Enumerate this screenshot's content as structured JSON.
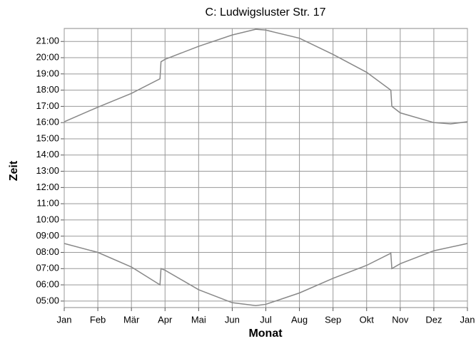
{
  "chart_data": {
    "type": "line",
    "title": "C: Ludwigsluster Str. 17",
    "xlabel": "Monat",
    "ylabel": "Zeit",
    "xlim": [
      0,
      12
    ],
    "xticks": [
      {
        "value": 0,
        "label": "Jan"
      },
      {
        "value": 1,
        "label": "Feb"
      },
      {
        "value": 2,
        "label": "Mär"
      },
      {
        "value": 3,
        "label": "Apr"
      },
      {
        "value": 4,
        "label": "Mai"
      },
      {
        "value": 5,
        "label": "Jun"
      },
      {
        "value": 6,
        "label": "Jul"
      },
      {
        "value": 7,
        "label": "Aug"
      },
      {
        "value": 8,
        "label": "Sep"
      },
      {
        "value": 9,
        "label": "Okt"
      },
      {
        "value": 10,
        "label": "Nov"
      },
      {
        "value": 11,
        "label": "Dez"
      },
      {
        "value": 12,
        "label": "Jan"
      }
    ],
    "ylim": [
      4.6,
      21.8
    ],
    "yticks": [
      {
        "value": 5,
        "label": "05:00"
      },
      {
        "value": 6,
        "label": "06:00"
      },
      {
        "value": 7,
        "label": "07:00"
      },
      {
        "value": 8,
        "label": "08:00"
      },
      {
        "value": 9,
        "label": "09:00"
      },
      {
        "value": 10,
        "label": "10:00"
      },
      {
        "value": 11,
        "label": "11:00"
      },
      {
        "value": 12,
        "label": "12:00"
      },
      {
        "value": 13,
        "label": "13:00"
      },
      {
        "value": 14,
        "label": "14:00"
      },
      {
        "value": 15,
        "label": "15:00"
      },
      {
        "value": 16,
        "label": "16:00"
      },
      {
        "value": 17,
        "label": "17:00"
      },
      {
        "value": 18,
        "label": "18:00"
      },
      {
        "value": 19,
        "label": "19:00"
      },
      {
        "value": 20,
        "label": "20:00"
      },
      {
        "value": 21,
        "label": "21:00"
      }
    ],
    "grid": true,
    "series": [
      {
        "color": "#888888",
        "x": [
          0,
          1,
          2,
          2.85,
          2.88,
          3,
          4,
          5,
          5.7,
          6,
          7,
          8,
          9,
          9.72,
          9.75,
          10,
          11,
          11.5,
          12
        ],
        "values": [
          16.05,
          16.95,
          17.8,
          18.7,
          19.75,
          19.9,
          20.7,
          21.4,
          21.75,
          21.7,
          21.2,
          20.2,
          19.1,
          18.0,
          17.0,
          16.6,
          16.0,
          15.92,
          16.05
        ]
      },
      {
        "color": "#888888",
        "x": [
          0,
          1,
          2,
          2.85,
          2.88,
          3,
          4,
          5,
          5.7,
          6,
          7,
          8,
          9,
          9.72,
          9.75,
          10,
          11,
          12
        ],
        "values": [
          8.55,
          8.0,
          7.1,
          6.0,
          7.0,
          6.9,
          5.7,
          4.9,
          4.72,
          4.8,
          5.5,
          6.4,
          7.2,
          7.95,
          7.0,
          7.3,
          8.1,
          8.55
        ]
      }
    ]
  }
}
